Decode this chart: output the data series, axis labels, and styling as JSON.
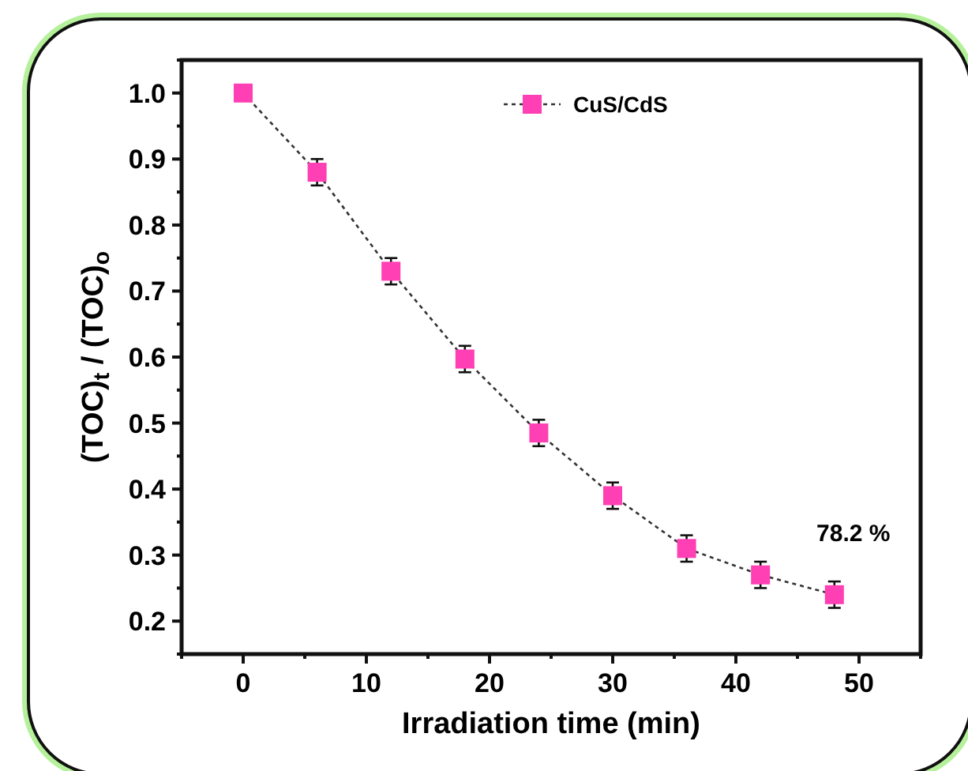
{
  "chart_data": {
    "type": "line",
    "xlabel": "Irradiation time (min)",
    "ylabel": "(TOC)$_{t}$ / (TOC)$_{o}$",
    "x": [
      0,
      6,
      12,
      18,
      24,
      30,
      36,
      42,
      48
    ],
    "series": [
      {
        "name": "CuS/CdS",
        "color": "#ff3fb4",
        "values": [
          1.0,
          0.88,
          0.73,
          0.597,
          0.485,
          0.39,
          0.31,
          0.27,
          0.24
        ],
        "errors": [
          null,
          0.02,
          0.02,
          0.02,
          0.02,
          0.02,
          0.02,
          0.02,
          0.02
        ]
      }
    ],
    "xlim": [
      -5,
      55
    ],
    "xticks": [
      {
        "value": -5,
        "label": null
      },
      0,
      {
        "value": 5,
        "label": null
      },
      10,
      {
        "value": 15,
        "label": null
      },
      20,
      {
        "value": 25,
        "label": null
      },
      30,
      {
        "value": 35,
        "label": null
      },
      40,
      {
        "value": 45,
        "label": null
      },
      50,
      {
        "value": 55,
        "label": null
      }
    ],
    "ylim": [
      0.15,
      1.05
    ],
    "yticks": [
      {
        "value": 0.15,
        "label": null
      },
      {
        "value": 0.2,
        "label": "0.2"
      },
      {
        "value": 0.25,
        "label": null
      },
      {
        "value": 0.3,
        "label": "0.3"
      },
      {
        "value": 0.35,
        "label": null
      },
      {
        "value": 0.4,
        "label": "0.4"
      },
      {
        "value": 0.45,
        "label": null
      },
      {
        "value": 0.5,
        "label": "0.5"
      },
      {
        "value": 0.55,
        "label": null
      },
      {
        "value": 0.6,
        "label": "0.6"
      },
      {
        "value": 0.65,
        "label": null
      },
      {
        "value": 0.7,
        "label": "0.7"
      },
      {
        "value": 0.75,
        "label": null
      },
      {
        "value": 0.8,
        "label": "0.8"
      },
      {
        "value": 0.85,
        "label": null
      },
      {
        "value": 0.9,
        "label": "0.9"
      },
      {
        "value": 0.95,
        "label": null
      },
      {
        "value": 1.0,
        "label": "1.0"
      },
      {
        "value": 1.05,
        "label": null
      }
    ],
    "annotations": [
      {
        "text": "78.2 %",
        "x": 48,
        "y": 0.24
      }
    ],
    "legend": "top",
    "marker": "square",
    "line_style": "dotted",
    "grid": false
  }
}
